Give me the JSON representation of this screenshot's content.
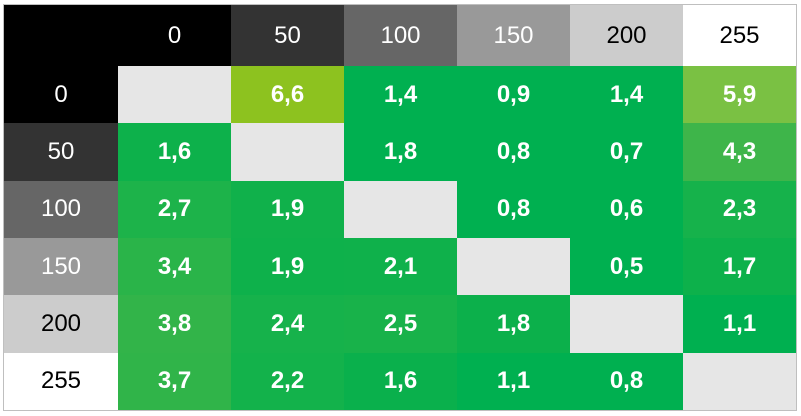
{
  "table": {
    "columns": [
      {
        "text": "0",
        "bg": "#000000",
        "fg": "#ffffff"
      },
      {
        "text": "50",
        "bg": "#333333",
        "fg": "#ffffff"
      },
      {
        "text": "100",
        "bg": "#666666",
        "fg": "#ffffff"
      },
      {
        "text": "150",
        "bg": "#999999",
        "fg": "#ffffff"
      },
      {
        "text": "200",
        "bg": "#cccccc",
        "fg": "#000000"
      },
      {
        "text": "255",
        "bg": "#ffffff",
        "fg": "#000000"
      }
    ],
    "rows": [
      {
        "header": {
          "text": "0",
          "bg": "#000000",
          "fg": "#ffffff"
        },
        "cells": [
          {
            "bg": "#e6e6e6"
          },
          {
            "text": "6,6",
            "bg": "#8dc21f"
          },
          {
            "text": "1,4",
            "bg": "#00b050"
          },
          {
            "text": "0,9",
            "bg": "#00b050"
          },
          {
            "text": "1,4",
            "bg": "#00b050"
          },
          {
            "text": "5,9",
            "bg": "#7ac143"
          }
        ]
      },
      {
        "header": {
          "text": "50",
          "bg": "#333333",
          "fg": "#ffffff"
        },
        "cells": [
          {
            "text": "1,6",
            "bg": "#0db14b"
          },
          {
            "bg": "#e6e6e6"
          },
          {
            "text": "1,8",
            "bg": "#00b050"
          },
          {
            "text": "0,8",
            "bg": "#00b050"
          },
          {
            "text": "0,7",
            "bg": "#00b050"
          },
          {
            "text": "4,3",
            "bg": "#3eb54a"
          }
        ]
      },
      {
        "header": {
          "text": "100",
          "bg": "#666666",
          "fg": "#ffffff"
        },
        "cells": [
          {
            "text": "2,7",
            "bg": "#1db34a"
          },
          {
            "text": "1,9",
            "bg": "#10b14b"
          },
          {
            "bg": "#e6e6e6"
          },
          {
            "text": "0,8",
            "bg": "#00b050"
          },
          {
            "text": "0,6",
            "bg": "#00b050"
          },
          {
            "text": "2,3",
            "bg": "#16b24b"
          }
        ]
      },
      {
        "header": {
          "text": "150",
          "bg": "#999999",
          "fg": "#ffffff"
        },
        "cells": [
          {
            "text": "3,4",
            "bg": "#2ab449"
          },
          {
            "text": "1,9",
            "bg": "#0eb14b"
          },
          {
            "text": "2,1",
            "bg": "#0fb14b"
          },
          {
            "bg": "#e6e6e6"
          },
          {
            "text": "0,5",
            "bg": "#00b050"
          },
          {
            "text": "1,7",
            "bg": "#0db14b"
          }
        ]
      },
      {
        "header": {
          "text": "200",
          "bg": "#cccccc",
          "fg": "#000000"
        },
        "cells": [
          {
            "text": "3,8",
            "bg": "#32b449"
          },
          {
            "text": "2,4",
            "bg": "#16b24b"
          },
          {
            "text": "2,5",
            "bg": "#18b24a"
          },
          {
            "text": "1,8",
            "bg": "#0cb04b"
          },
          {
            "bg": "#e6e6e6"
          },
          {
            "text": "1,1",
            "bg": "#00b050"
          }
        ]
      },
      {
        "header": {
          "text": "255",
          "bg": "#ffffff",
          "fg": "#000000"
        },
        "cells": [
          {
            "text": "3,7",
            "bg": "#30b449"
          },
          {
            "text": "2,2",
            "bg": "#13b24b"
          },
          {
            "text": "1,6",
            "bg": "#0ab04c"
          },
          {
            "text": "1,1",
            "bg": "#00b050"
          },
          {
            "text": "0,8",
            "bg": "#00b050"
          },
          {
            "bg": "#e6e6e6"
          }
        ]
      }
    ]
  }
}
